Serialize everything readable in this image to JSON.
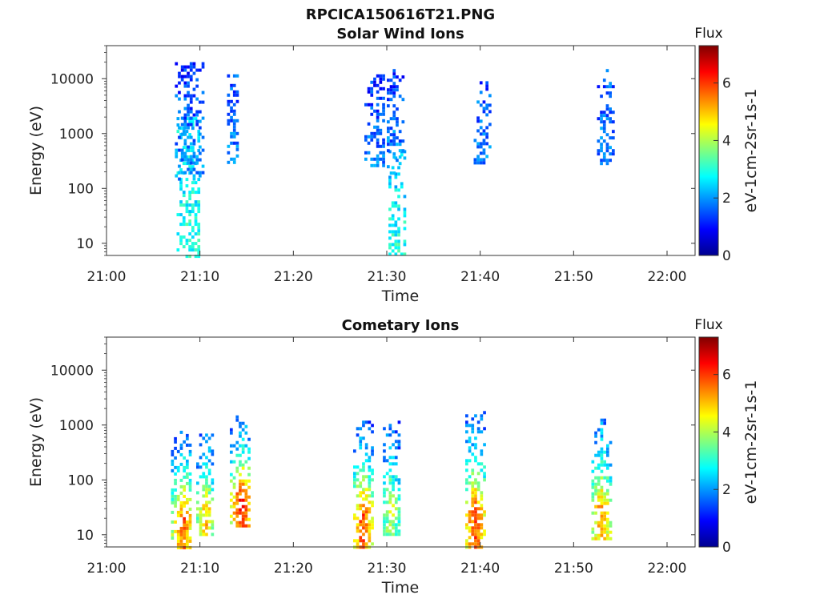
{
  "figure": {
    "title": "RPCICA150616T21.PNG"
  },
  "chart_data": [
    {
      "type": "heatmap",
      "title": "Solar Wind Ions",
      "xlabel": "Time",
      "ylabel": "Energy (eV)",
      "x_ticks": [
        "21:00",
        "21:10",
        "21:20",
        "21:30",
        "21:40",
        "21:50",
        "22:00"
      ],
      "xlim": [
        "21:00",
        "22:03"
      ],
      "y_ticks": [
        10,
        100,
        1000,
        10000
      ],
      "ylim": [
        6,
        40000
      ],
      "yscale": "log",
      "colorbar": {
        "title": "Flux",
        "label": "eV-1cm-2sr-1s-1",
        "ticks": [
          0,
          2,
          4,
          6
        ],
        "range": [
          0,
          7.3
        ],
        "colormap": "jet"
      },
      "bursts": [
        {
          "t": 21.148,
          "t_start": 21.125,
          "t_end": 21.163,
          "e_low": 6,
          "e_high": 2000,
          "flux_low": 3.0,
          "flux_high": 2.5,
          "hot": false
        },
        {
          "t": 21.145,
          "t_start": 21.122,
          "t_end": 21.17,
          "e_low": 150,
          "e_high": 20000,
          "flux_low": 2.0,
          "flux_high": 1.2,
          "hot": false
        },
        {
          "t": 21.225,
          "t_start": 21.215,
          "t_end": 21.232,
          "e_low": 300,
          "e_high": 12000,
          "flux_low": 1.8,
          "flux_high": 1.5,
          "hot": false
        },
        {
          "t": 21.478,
          "t_start": 21.46,
          "t_end": 21.495,
          "e_low": 250,
          "e_high": 12000,
          "flux_low": 1.8,
          "flux_high": 1.2,
          "hot": false
        },
        {
          "t": 21.51,
          "t_start": 21.503,
          "t_end": 21.53,
          "e_low": 6,
          "e_high": 500,
          "flux_low": 3.0,
          "flux_high": 2.3,
          "hot": false
        },
        {
          "t": 21.51,
          "t_start": 21.5,
          "t_end": 21.53,
          "e_low": 200,
          "e_high": 15000,
          "flux_low": 2.0,
          "flux_high": 1.2,
          "hot": false
        },
        {
          "t": 21.668,
          "t_start": 21.655,
          "t_end": 21.685,
          "e_low": 280,
          "e_high": 9000,
          "flux_low": 1.8,
          "flux_high": 1.5,
          "hot": false
        },
        {
          "t": 21.89,
          "t_start": 21.875,
          "t_end": 21.905,
          "e_low": 300,
          "e_high": 15000,
          "flux_low": 1.8,
          "flux_high": 1.5,
          "hot": false
        }
      ]
    },
    {
      "type": "heatmap",
      "title": "Cometary Ions",
      "xlabel": "Time",
      "ylabel": "Energy (eV)",
      "x_ticks": [
        "21:00",
        "21:10",
        "21:20",
        "21:30",
        "21:40",
        "21:50",
        "22:00"
      ],
      "xlim": [
        "21:00",
        "22:03"
      ],
      "y_ticks": [
        10,
        100,
        1000,
        10000
      ],
      "ylim": [
        6,
        40000
      ],
      "yscale": "log",
      "colorbar": {
        "title": "Flux",
        "label": "eV-1cm-2sr-1s-1",
        "ticks": [
          0,
          2,
          4,
          6
        ],
        "range": [
          0,
          7.3
        ],
        "colormap": "jet"
      },
      "bursts": [
        {
          "t": 21.135,
          "t_start": 21.115,
          "t_end": 21.15,
          "e_low": 6,
          "e_high": 900,
          "flux_low": 6.3,
          "flux_high": 2.5,
          "hot": true
        },
        {
          "t": 21.175,
          "t_start": 21.16,
          "t_end": 21.19,
          "e_low": 10,
          "e_high": 800,
          "flux_low": 5.5,
          "flux_high": 2.5,
          "hot": true
        },
        {
          "t": 21.24,
          "t_start": 21.22,
          "t_end": 21.255,
          "e_low": 15,
          "e_high": 1500,
          "flux_low": 7.0,
          "flux_high": 2.5,
          "hot": true
        },
        {
          "t": 21.455,
          "t_start": 21.44,
          "t_end": 21.475,
          "e_low": 6,
          "e_high": 1200,
          "flux_low": 6.5,
          "flux_high": 2.5,
          "hot": true
        },
        {
          "t": 21.505,
          "t_start": 21.493,
          "t_end": 21.52,
          "e_low": 10,
          "e_high": 1200,
          "flux_low": 4.5,
          "flux_high": 2.5,
          "hot": true
        },
        {
          "t": 21.655,
          "t_start": 21.64,
          "t_end": 21.675,
          "e_low": 6,
          "e_high": 1800,
          "flux_low": 6.5,
          "flux_high": 2.5,
          "hot": true
        },
        {
          "t": 21.88,
          "t_start": 21.865,
          "t_end": 21.9,
          "e_low": 8,
          "e_high": 1500,
          "flux_low": 5.8,
          "flux_high": 2.5,
          "hot": true
        }
      ]
    }
  ]
}
